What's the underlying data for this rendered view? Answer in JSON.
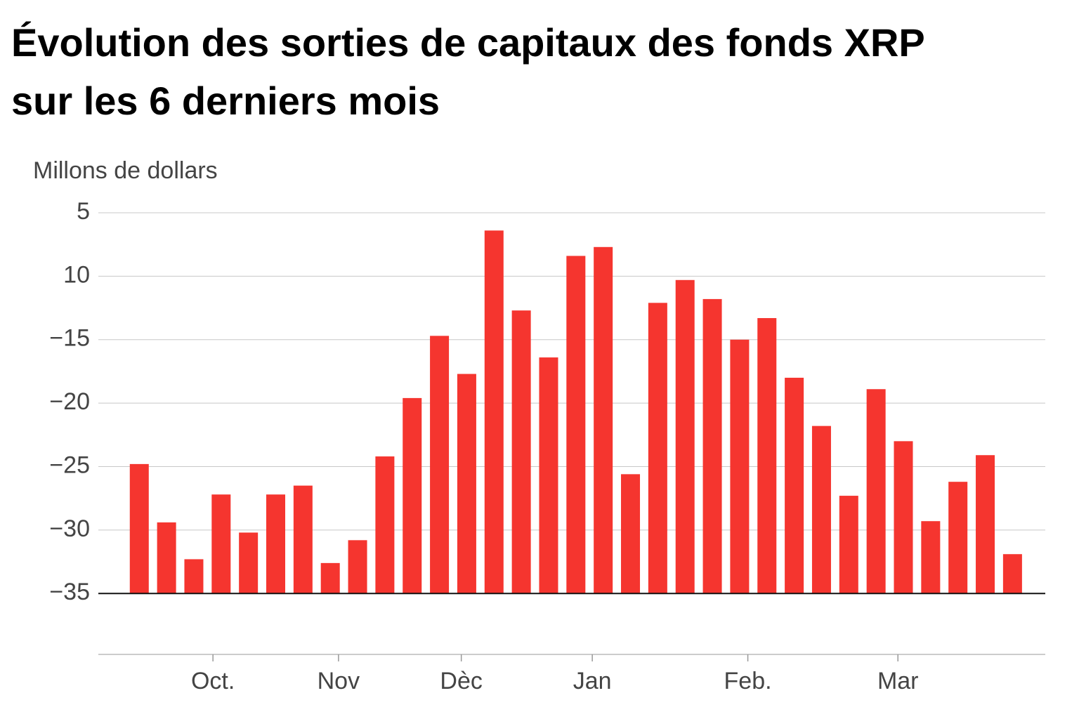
{
  "chart_data": {
    "type": "bar",
    "title": "Évolution des sorties de capitaux des fonds XRP",
    "subtitle": "sur les 6 derniers mois",
    "y_label": "Millons de dollars",
    "categories": [
      null,
      null,
      null,
      null,
      null,
      null,
      null,
      null,
      null,
      null,
      null,
      null,
      null,
      null,
      null,
      null,
      null,
      null,
      null,
      null,
      null,
      null,
      null,
      null,
      null,
      null,
      null,
      null,
      null,
      null,
      null,
      null,
      null
    ],
    "values": [
      -24.8,
      -29.4,
      -32.3,
      -27.2,
      -30.2,
      -27.2,
      -26.5,
      -32.6,
      -30.8,
      -24.2,
      -19.6,
      -14.7,
      -17.7,
      -6.4,
      -12.7,
      -16.4,
      -8.4,
      -7.7,
      -25.6,
      -12.1,
      -10.3,
      -11.8,
      -15,
      -13.3,
      -18,
      -21.8,
      -27.3,
      -18.9,
      -23,
      -29.3,
      -26.2,
      -24.1,
      -31.9
    ],
    "color": "#f5352f",
    "ylim": [
      -39.8,
      -5
    ],
    "yticks": [
      {
        "value": -5,
        "label": "5"
      },
      {
        "value": -10,
        "label": "10"
      },
      {
        "value": -15,
        "label": "−15"
      },
      {
        "value": -20,
        "label": "−20"
      },
      {
        "value": -25,
        "label": "−25"
      },
      {
        "value": -30,
        "label": "−30"
      },
      {
        "value": -35,
        "label": "−35"
      }
    ],
    "xlim": [
      -1.5,
      33.2
    ],
    "xticks": [
      {
        "value": 2.7,
        "label": "Oct."
      },
      {
        "value": 7.3,
        "label": "Nov"
      },
      {
        "value": 11.8,
        "label": "Dèc"
      },
      {
        "value": 16.6,
        "label": "Jan"
      },
      {
        "value": 22.3,
        "label": "Feb."
      },
      {
        "value": 27.8,
        "label": "Mar"
      }
    ],
    "grid": true
  }
}
